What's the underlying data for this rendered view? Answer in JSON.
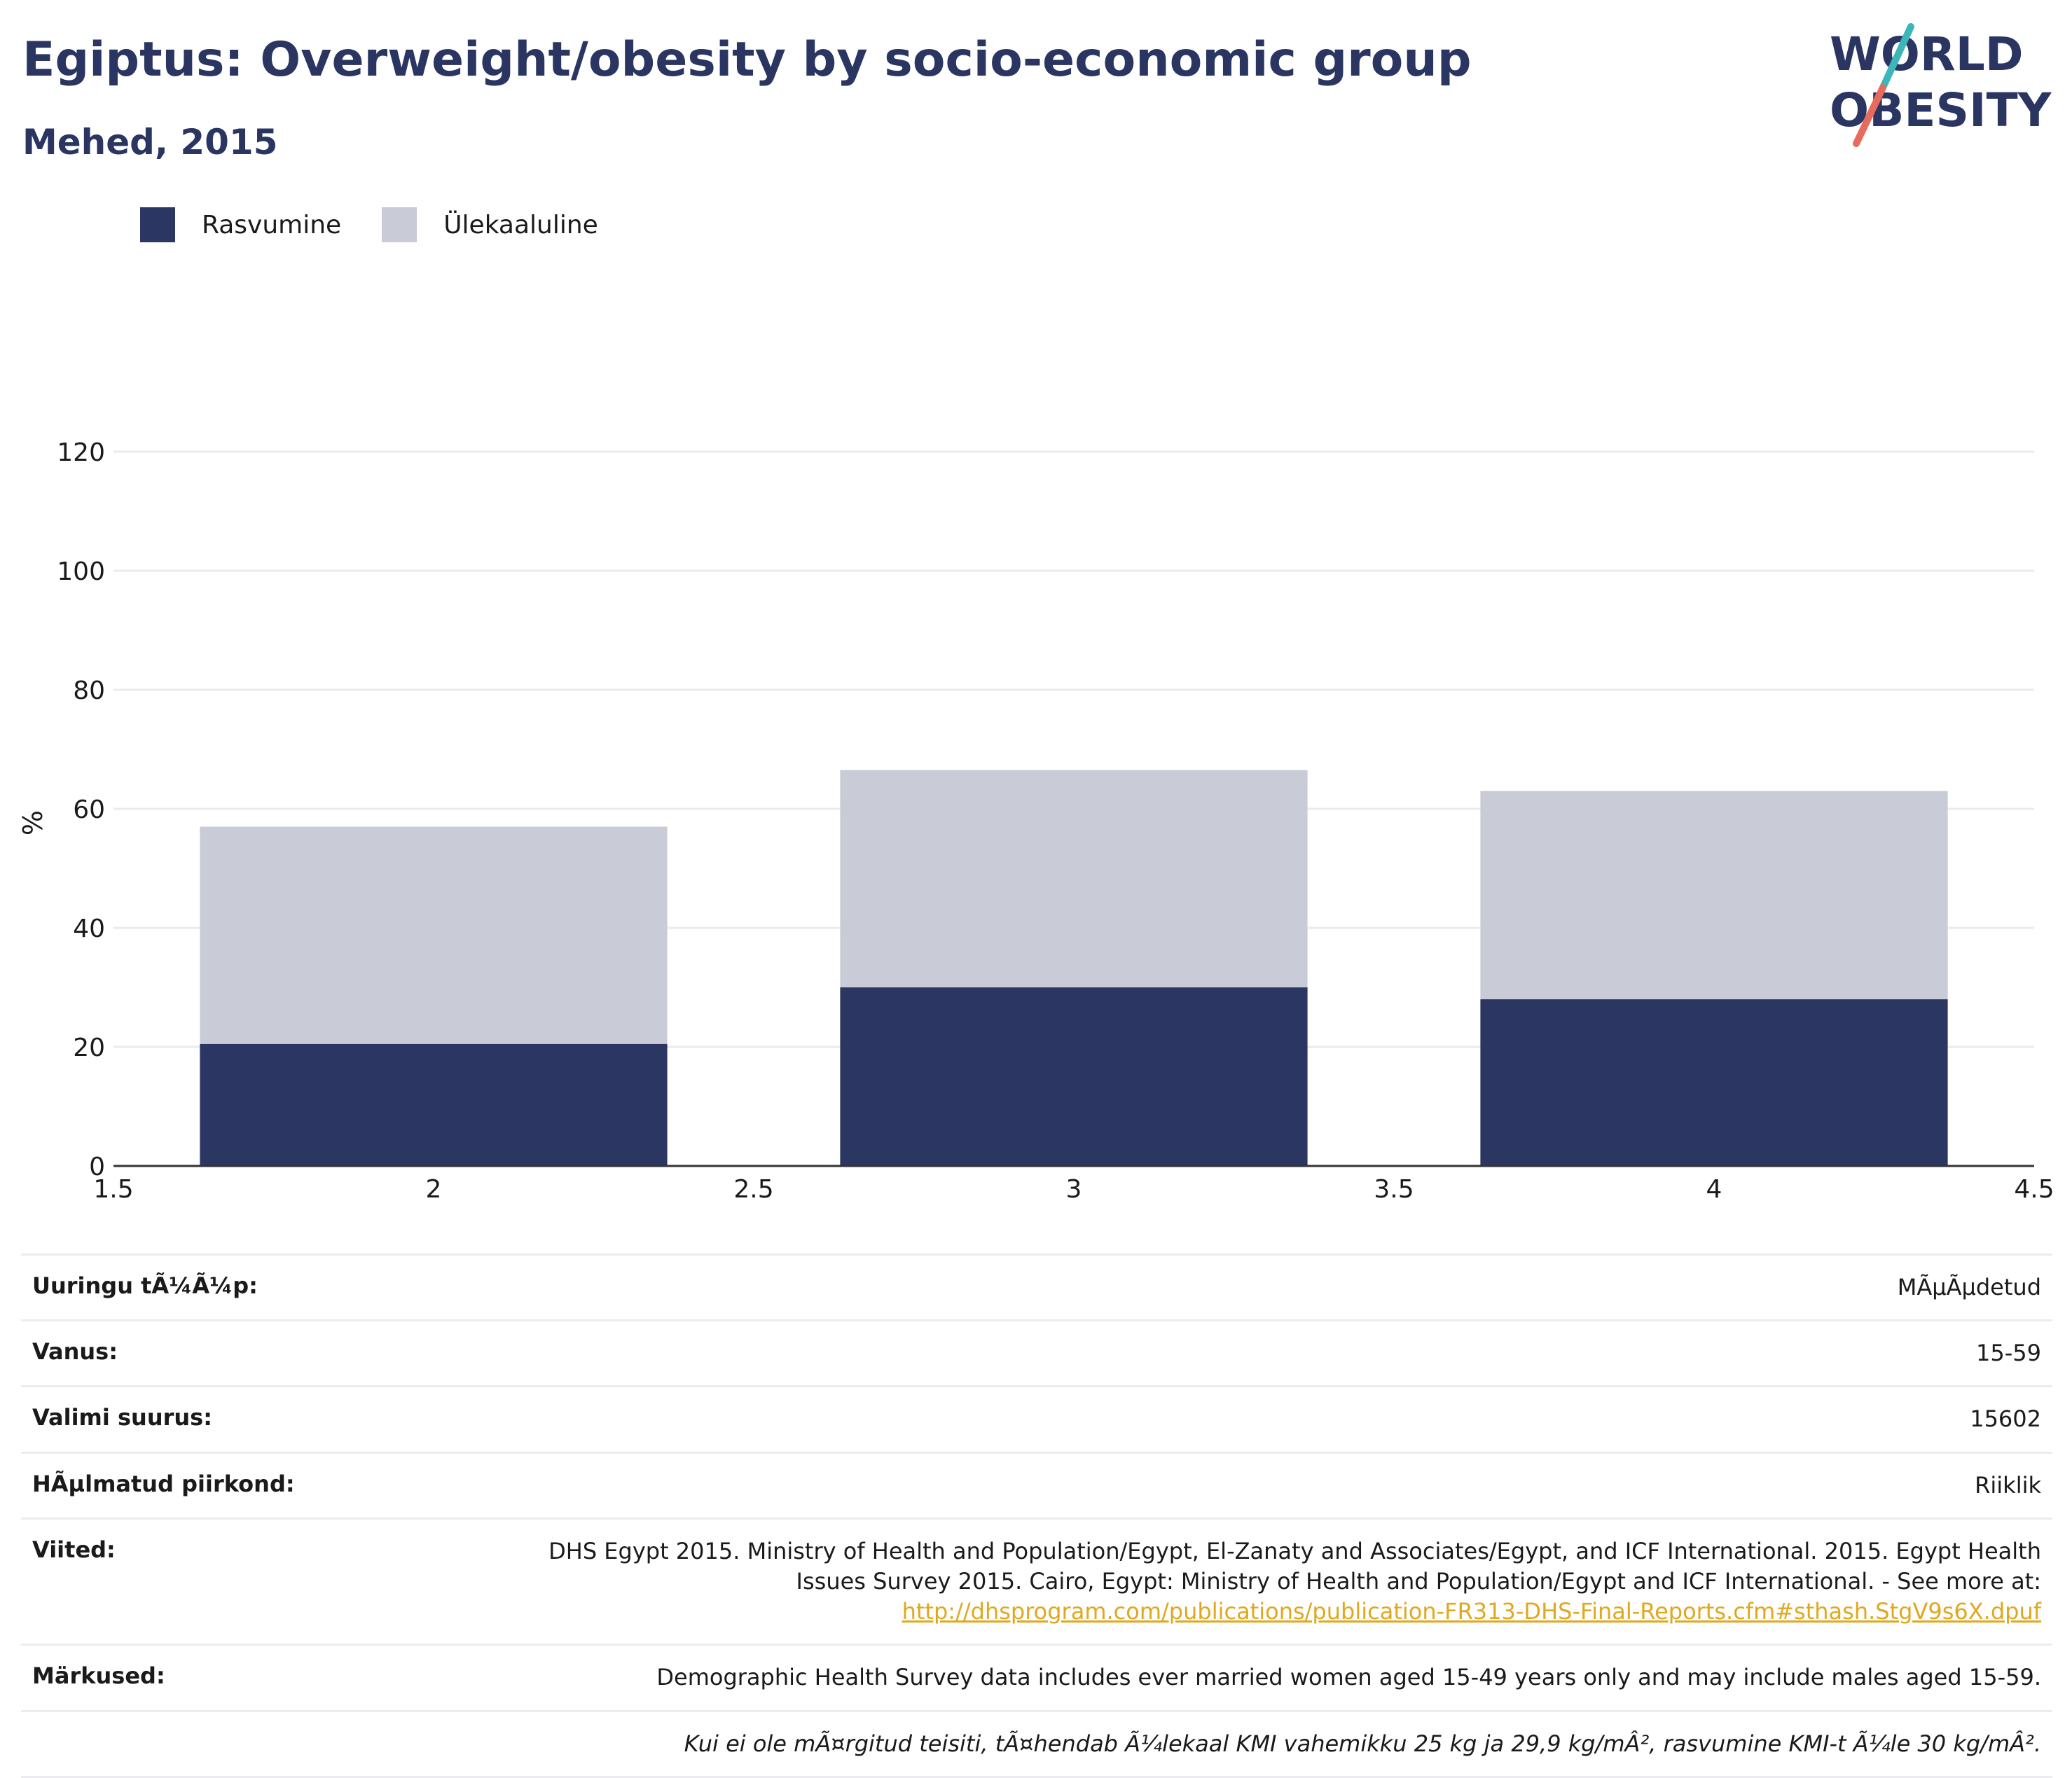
{
  "header": {
    "title": "Egiptus: Overweight/obesity by socio-economic group",
    "subtitle": "Mehed, 2015"
  },
  "logo": {
    "line1": "WORLD",
    "line2": "OBESITY",
    "name": "world-obesity-logo"
  },
  "legend": [
    {
      "label": "Rasvumine",
      "color": "#2b3663"
    },
    {
      "label": "Ülekaaluline",
      "color": "#c9cbd6"
    }
  ],
  "chart_data": {
    "type": "bar",
    "stacked": true,
    "x": [
      2,
      3,
      4
    ],
    "series": [
      {
        "name": "Rasvumine",
        "color": "#2b3663",
        "values": [
          20.5,
          30.0,
          28.0
        ]
      },
      {
        "name": "Ülekaaluline",
        "color": "#c9cbd6",
        "values": [
          36.5,
          36.5,
          35.0
        ]
      }
    ],
    "xlim": [
      1.5,
      4.5
    ],
    "xticks": [
      "1.5",
      "2",
      "2.5",
      "3",
      "3.5",
      "4",
      "4.5"
    ],
    "ylim": [
      0,
      120
    ],
    "yticks": [
      "0",
      "20",
      "40",
      "60",
      "80",
      "100",
      "120"
    ],
    "ylabel": "%",
    "grid": true,
    "legend_position": "top-left"
  },
  "info": {
    "rows": [
      {
        "key": "Uuringu tÃ¼Ã¼p:",
        "value": "MÃµÃµdetud"
      },
      {
        "key": "Vanus:",
        "value": "15-59"
      },
      {
        "key": "Valimi suurus:",
        "value": "15602"
      },
      {
        "key": "HÃµlmatud piirkond:",
        "value": "Riiklik"
      }
    ],
    "references": {
      "key": "Viited:",
      "text": "DHS Egypt 2015. Ministry of Health and Population/Egypt, El-Zanaty and Associates/Egypt, and ICF International. 2015. Egypt Health Issues Survey 2015. Cairo, Egypt: Ministry of Health and Population/Egypt and ICF International. - See more at:",
      "link": "http://dhsprogram.com/publications/publication-FR313-DHS-Final-Reports.cfm#sthash.StgV9s6X.dpuf"
    },
    "notes": {
      "key": "Märkused:",
      "text": "Demographic Health Survey data includes ever married women aged 15-49 years only and may include males aged 15-59.",
      "italic": "Kui ei ole mÃ¤rgitud teisiti, tÃ¤hendab Ã¼lekaal KMI vahemikku 25 kg ja 29,9 kg/mÂ², rasvumine KMI-t Ã¼le 30 kg/mÂ²."
    }
  }
}
